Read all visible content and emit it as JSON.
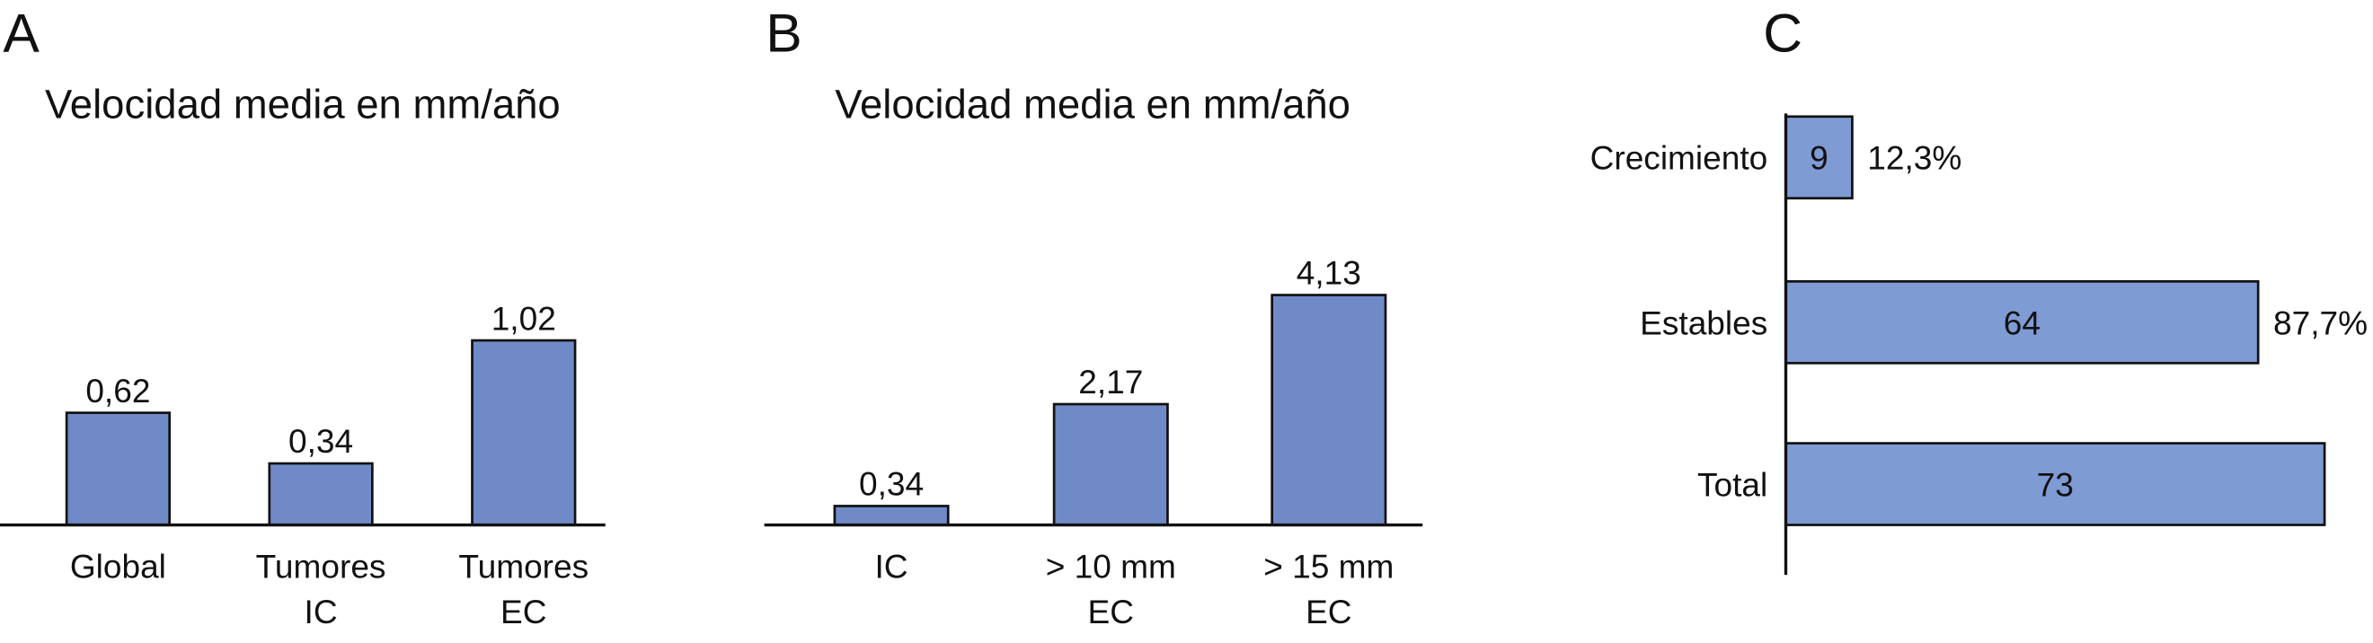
{
  "chart_data": [
    {
      "type": "bar",
      "panel": "A",
      "title": "Velocidad media en mm/año",
      "categories": [
        [
          "Global"
        ],
        [
          "Tumores",
          "IC"
        ],
        [
          "Tumores",
          "EC"
        ]
      ],
      "values": [
        0.62,
        0.34,
        1.02
      ],
      "value_labels": [
        "0,62",
        "0,34",
        "1,02"
      ],
      "color": "#6f8ac6"
    },
    {
      "type": "bar",
      "panel": "B",
      "title": "Velocidad media en mm/año",
      "categories": [
        [
          "IC"
        ],
        [
          "> 10 mm",
          "EC"
        ],
        [
          "> 15 mm",
          "EC"
        ]
      ],
      "values": [
        0.34,
        2.17,
        4.13
      ],
      "value_labels": [
        "0,34",
        "2,17",
        "4,13"
      ],
      "color": "#6f8ac6"
    },
    {
      "type": "hbar",
      "panel": "C",
      "categories": [
        "Crecimiento",
        "Estables",
        "Total"
      ],
      "values": [
        9,
        64,
        73
      ],
      "percentages": [
        12.3,
        87.7,
        null
      ],
      "percentage_labels": [
        "12,3%",
        "87,7%",
        null
      ],
      "color": "#7f9bd4"
    }
  ]
}
